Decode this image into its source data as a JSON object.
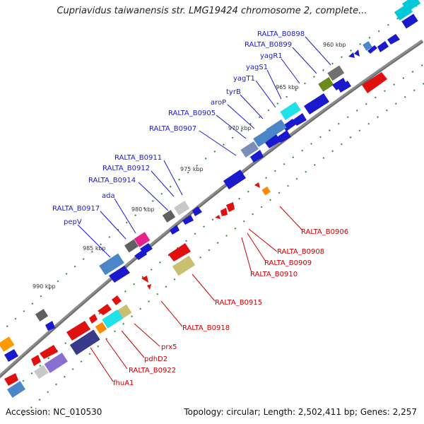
{
  "title": "Cupriavidus taiwanensis str. LMG19424 chromosome 2, complete...",
  "footer": {
    "accession": "Accession: NC_010530",
    "topology": "Topology: circular; Length: 2,502,411 bp; Genes: 2,257"
  },
  "ticks": [
    "960 kbp",
    "965 kbp",
    "970 kbp",
    "975 kbp",
    "980 kbp",
    "985 kbp",
    "990 kbp"
  ],
  "forward_labels": [
    "RALTA_B0898",
    "RALTA_B0899",
    "yagR1",
    "yagS1",
    "yagT1",
    "tyrB",
    "aroP",
    "RALTA_B0905",
    "RALTA_B0907",
    "RALTA_B0911",
    "RALTA_B0912",
    "RALTA_B0914",
    "ada",
    "RALTA_B0917",
    "pepV"
  ],
  "reverse_labels": [
    "RALTA_B0906",
    "RALTA_B0908",
    "RALTA_B0909",
    "RALTA_B0910",
    "RALTA_B0915",
    "RALTA_B0918",
    "prx5",
    "pdhD2",
    "RALTA_B0922",
    "fhuA1"
  ],
  "colors": {
    "forward_label": "#1a1acc",
    "reverse_label": "#cc0000",
    "backbone": "#8c8c8c",
    "tick": "#2e8b2e"
  }
}
